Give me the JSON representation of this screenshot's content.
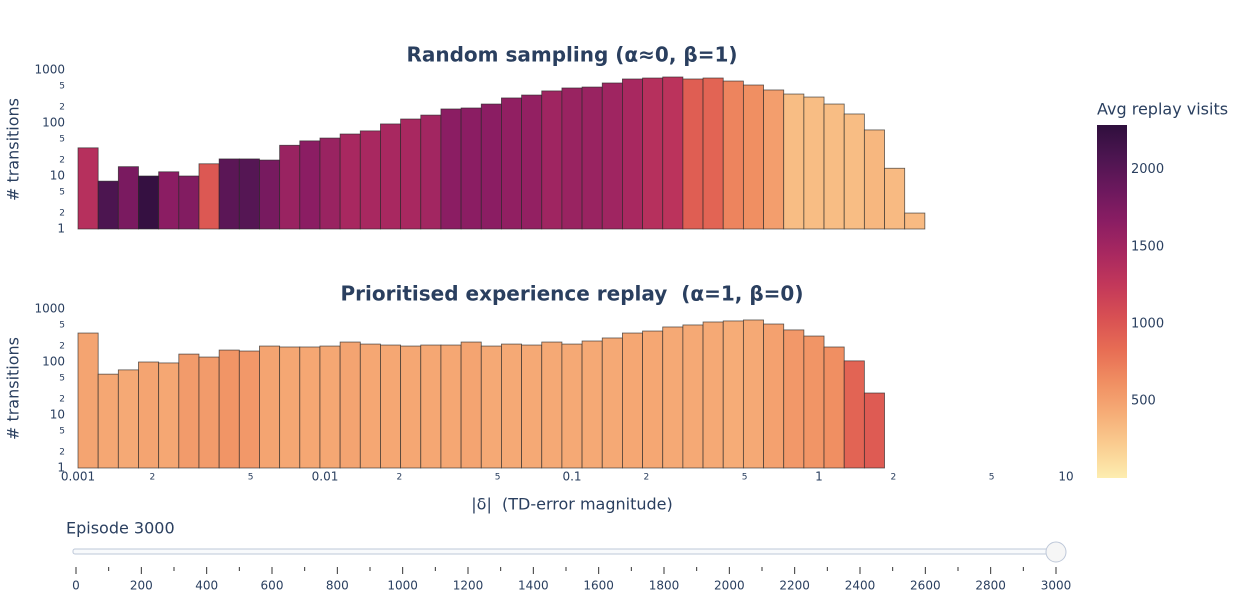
{
  "chart_data": [
    {
      "type": "histogram",
      "title": "Random sampling (α≈0, β=1)",
      "y_label": "# transitions",
      "bins": [
        0.001,
        0.0012068,
        0.0014563,
        0.0017575,
        0.002121,
        0.0025595,
        0.0030888,
        0.0037276,
        0.0044984,
        0.0054287,
        0.0065513,
        0.007906,
        0.009541,
        0.011514,
        0.013895,
        0.016768,
        0.020236,
        0.024421,
        0.029471,
        0.035565,
        0.042919,
        0.051795,
        0.062506,
        0.075431,
        0.09103,
        0.10985,
        0.13257,
        0.15999,
        0.19307,
        0.233,
        0.28118,
        0.33932,
        0.40949,
        0.49417,
        0.59636,
        0.71969,
        0.86851,
        1.0481,
        1.2649,
        1.5264,
        1.8421,
        2.223,
        2.6827
      ],
      "values": [
        34,
        8,
        15,
        10,
        12,
        10,
        17,
        21,
        21,
        20,
        38,
        46,
        52,
        62,
        71,
        96,
        119,
        141,
        184,
        192,
        228,
        297,
        337,
        403,
        458,
        477,
        569,
        677,
        706,
        738,
        677,
        706,
        619,
        521,
        420,
        352,
        309,
        228,
        148,
        74,
        14,
        2
      ],
      "color_values": [
        1350,
        2080,
        1770,
        2250,
        1660,
        1720,
        980,
        1980,
        2020,
        1790,
        1560,
        1660,
        1560,
        1460,
        1460,
        1460,
        1460,
        1500,
        1660,
        1660,
        1660,
        1620,
        1600,
        1520,
        1560,
        1560,
        1520,
        1460,
        1350,
        1310,
        940,
        900,
        690,
        620,
        520,
        310,
        310,
        310,
        310,
        350,
        330,
        330
      ],
      "xlim": [
        0.001,
        10
      ],
      "x_log": true,
      "ylim": [
        1,
        1000
      ],
      "y_log": true,
      "yticks": [
        1,
        2,
        5,
        10,
        {
          "value": 20,
          "label": "2"
        },
        {
          "value": 50,
          "label": "5"
        },
        100,
        {
          "value": 200,
          "label": "2"
        },
        {
          "value": 500,
          "label": "5"
        },
        1000
      ]
    },
    {
      "type": "histogram",
      "title": "Prioritised experience replay  (α=1, β=0)",
      "y_label": "# transitions",
      "x_label": "|δ|  (TD-error magnitude)",
      "bins": [
        0.001,
        0.0012068,
        0.0014563,
        0.0017575,
        0.002121,
        0.0025595,
        0.0030888,
        0.0037276,
        0.0044984,
        0.0054287,
        0.0065513,
        0.007906,
        0.009541,
        0.011514,
        0.013895,
        0.016768,
        0.020236,
        0.024421,
        0.029471,
        0.035565,
        0.042919,
        0.051795,
        0.062506,
        0.075431,
        0.09103,
        0.10985,
        0.13257,
        0.15999,
        0.19307,
        0.233,
        0.28118,
        0.33932,
        0.40949,
        0.49417,
        0.59636,
        0.71969,
        0.86851,
        1.0481,
        1.2649,
        1.5264,
        1.8421
      ],
      "values": [
        352,
        59,
        71,
        100,
        96,
        141,
        124,
        168,
        161,
        200,
        192,
        192,
        200,
        238,
        218,
        209,
        200,
        209,
        209,
        238,
        200,
        218,
        209,
        238,
        218,
        249,
        284,
        352,
        384,
        458,
        500,
        569,
        595,
        621,
        521,
        403,
        309,
        192,
        105,
        26
      ],
      "color_values": [
        480,
        460,
        440,
        480,
        460,
        540,
        540,
        580,
        560,
        480,
        460,
        460,
        460,
        480,
        460,
        460,
        460,
        460,
        460,
        480,
        440,
        440,
        440,
        440,
        440,
        440,
        440,
        460,
        460,
        440,
        440,
        440,
        420,
        440,
        500,
        560,
        580,
        620,
        900,
        960
      ],
      "xlim": [
        0.001,
        10
      ],
      "x_log": true,
      "xticks": [
        0.001,
        {
          "value": 0.002,
          "label": "2"
        },
        {
          "value": 0.005,
          "label": "5"
        },
        0.01,
        {
          "value": 0.02,
          "label": "2"
        },
        {
          "value": 0.05,
          "label": "5"
        },
        0.1,
        {
          "value": 0.2,
          "label": "2"
        },
        {
          "value": 0.5,
          "label": "5"
        },
        1,
        {
          "value": 2,
          "label": "2"
        },
        {
          "value": 5,
          "label": "5"
        },
        10
      ],
      "ylim": [
        1,
        1000
      ],
      "y_log": true,
      "yticks": [
        1,
        2,
        5,
        10,
        {
          "value": 20,
          "label": "2"
        },
        {
          "value": 50,
          "label": "5"
        },
        100,
        {
          "value": 200,
          "label": "2"
        },
        {
          "value": 500,
          "label": "5"
        },
        1000
      ]
    }
  ],
  "colorbar": {
    "title": "Avg replay visits",
    "clim": [
      0,
      2290
    ],
    "colorscale": [
      "#fdedb0",
      "#facd91",
      "#f6ad77",
      "#f08e62",
      "#e76d54",
      "#d85053",
      "#c3385a",
      "#a82860",
      "#8a1d63",
      "#6b185d",
      "#4c1550",
      "#2f0f3d"
    ],
    "ticks": [
      500,
      1000,
      1500,
      2000
    ]
  },
  "slider": {
    "current_label": "Episode 3000",
    "value": 3000,
    "range": [
      0,
      3000
    ],
    "ticks": [
      0,
      200,
      400,
      600,
      800,
      1000,
      1200,
      1400,
      1600,
      1800,
      2000,
      2200,
      2400,
      2600,
      2800,
      3000
    ],
    "minor_ticks": [
      100,
      300,
      500,
      700,
      900,
      1100,
      1300,
      1500,
      1700,
      1900,
      2100,
      2300,
      2500,
      2700,
      2900
    ]
  }
}
